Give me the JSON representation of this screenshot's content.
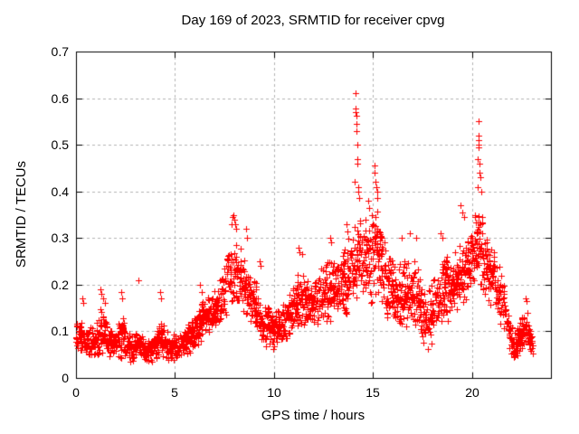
{
  "chart_data": {
    "type": "scatter",
    "title": "Day 169 of 2023, SRMTID for receiver cpvg",
    "xlabel": "GPS time / hours",
    "ylabel": "SRMTID / TECUs",
    "xlim": [
      0,
      24
    ],
    "ylim": [
      0,
      0.7
    ],
    "xticks": [
      0,
      5,
      10,
      15,
      20
    ],
    "xtick_labels": [
      "0",
      "5",
      "10",
      "15",
      "20"
    ],
    "yticks": [
      0,
      0.1,
      0.2,
      0.3,
      0.4,
      0.5,
      0.6,
      0.7
    ],
    "ytick_labels": [
      "0",
      "0.1",
      "0.2",
      "0.3",
      "0.4",
      "0.5",
      "0.6",
      "0.7"
    ],
    "grid": true,
    "legend": "none",
    "marker": "plus",
    "marker_size": 7,
    "colors": {
      "marker": "#ff0000",
      "grid": "#b4b4b4",
      "border": "#000000",
      "text": "#000000",
      "background": "#ffffff"
    },
    "envelope_points": [
      [
        0.0,
        0.05,
        0.13
      ],
      [
        0.4,
        0.05,
        0.12
      ],
      [
        0.8,
        0.04,
        0.11
      ],
      [
        1.3,
        0.05,
        0.15
      ],
      [
        1.7,
        0.04,
        0.1
      ],
      [
        2.3,
        0.04,
        0.14
      ],
      [
        2.8,
        0.03,
        0.09
      ],
      [
        3.2,
        0.04,
        0.1
      ],
      [
        3.7,
        0.03,
        0.08
      ],
      [
        4.3,
        0.04,
        0.13
      ],
      [
        4.8,
        0.03,
        0.09
      ],
      [
        5.3,
        0.04,
        0.1
      ],
      [
        5.8,
        0.05,
        0.12
      ],
      [
        6.3,
        0.07,
        0.16
      ],
      [
        6.8,
        0.08,
        0.18
      ],
      [
        7.3,
        0.1,
        0.22
      ],
      [
        7.7,
        0.13,
        0.28
      ],
      [
        8.1,
        0.14,
        0.3
      ],
      [
        8.5,
        0.12,
        0.26
      ],
      [
        9.0,
        0.1,
        0.22
      ],
      [
        9.5,
        0.07,
        0.16
      ],
      [
        10.0,
        0.05,
        0.14
      ],
      [
        10.5,
        0.07,
        0.16
      ],
      [
        11.0,
        0.09,
        0.2
      ],
      [
        11.4,
        0.1,
        0.24
      ],
      [
        11.9,
        0.1,
        0.22
      ],
      [
        12.4,
        0.11,
        0.24
      ],
      [
        12.9,
        0.12,
        0.26
      ],
      [
        13.3,
        0.12,
        0.26
      ],
      [
        13.7,
        0.13,
        0.29
      ],
      [
        14.1,
        0.15,
        0.36
      ],
      [
        14.5,
        0.15,
        0.33
      ],
      [
        14.9,
        0.16,
        0.36
      ],
      [
        15.2,
        0.16,
        0.36
      ],
      [
        15.6,
        0.13,
        0.3
      ],
      [
        16.0,
        0.1,
        0.26
      ],
      [
        16.5,
        0.1,
        0.26
      ],
      [
        16.9,
        0.1,
        0.27
      ],
      [
        17.3,
        0.09,
        0.24
      ],
      [
        17.7,
        0.04,
        0.19
      ],
      [
        18.1,
        0.07,
        0.22
      ],
      [
        18.5,
        0.12,
        0.28
      ],
      [
        18.9,
        0.12,
        0.26
      ],
      [
        19.3,
        0.13,
        0.28
      ],
      [
        19.7,
        0.16,
        0.31
      ],
      [
        20.1,
        0.18,
        0.34
      ],
      [
        20.35,
        0.2,
        0.38
      ],
      [
        20.7,
        0.16,
        0.32
      ],
      [
        21.1,
        0.13,
        0.28
      ],
      [
        21.5,
        0.1,
        0.23
      ],
      [
        21.9,
        0.06,
        0.14
      ],
      [
        22.2,
        0.03,
        0.1
      ],
      [
        22.5,
        0.05,
        0.13
      ],
      [
        22.75,
        0.06,
        0.16
      ],
      [
        23.0,
        0.04,
        0.11
      ],
      [
        23.1,
        0.04,
        0.1
      ]
    ],
    "spike_points": [
      [
        0.3,
        0.17
      ],
      [
        0.35,
        0.16
      ],
      [
        1.25,
        0.19
      ],
      [
        1.3,
        0.18
      ],
      [
        1.35,
        0.17
      ],
      [
        1.45,
        0.16
      ],
      [
        2.3,
        0.185
      ],
      [
        2.35,
        0.17
      ],
      [
        3.15,
        0.21
      ],
      [
        4.25,
        0.185
      ],
      [
        4.3,
        0.17
      ],
      [
        6.25,
        0.2
      ],
      [
        6.35,
        0.185
      ],
      [
        7.85,
        0.33
      ],
      [
        7.9,
        0.345
      ],
      [
        7.95,
        0.35
      ],
      [
        8.0,
        0.34
      ],
      [
        8.05,
        0.33
      ],
      [
        8.1,
        0.32
      ],
      [
        8.6,
        0.32
      ],
      [
        8.63,
        0.3
      ],
      [
        9.3,
        0.25
      ],
      [
        9.33,
        0.24
      ],
      [
        11.25,
        0.28
      ],
      [
        11.3,
        0.27
      ],
      [
        11.45,
        0.265
      ],
      [
        12.85,
        0.3
      ],
      [
        12.9,
        0.29
      ],
      [
        13.65,
        0.33
      ],
      [
        13.7,
        0.315
      ],
      [
        14.1,
        0.42
      ],
      [
        14.12,
        0.61
      ],
      [
        14.13,
        0.578
      ],
      [
        14.14,
        0.57
      ],
      [
        14.15,
        0.562
      ],
      [
        14.16,
        0.545
      ],
      [
        14.18,
        0.53
      ],
      [
        14.2,
        0.5
      ],
      [
        14.21,
        0.47
      ],
      [
        14.22,
        0.46
      ],
      [
        14.25,
        0.41
      ],
      [
        14.28,
        0.4
      ],
      [
        14.3,
        0.385
      ],
      [
        14.75,
        0.38
      ],
      [
        14.8,
        0.365
      ],
      [
        15.08,
        0.455
      ],
      [
        15.1,
        0.44
      ],
      [
        15.13,
        0.42
      ],
      [
        15.16,
        0.41
      ],
      [
        15.2,
        0.4
      ],
      [
        15.24,
        0.385
      ],
      [
        16.45,
        0.3
      ],
      [
        16.85,
        0.31
      ],
      [
        17.2,
        0.3
      ],
      [
        18.42,
        0.31
      ],
      [
        18.5,
        0.3
      ],
      [
        19.45,
        0.37
      ],
      [
        19.5,
        0.355
      ],
      [
        19.6,
        0.345
      ],
      [
        20.28,
        0.41
      ],
      [
        20.3,
        0.47
      ],
      [
        20.32,
        0.55
      ],
      [
        20.33,
        0.52
      ],
      [
        20.34,
        0.51
      ],
      [
        20.35,
        0.5
      ],
      [
        20.36,
        0.495
      ],
      [
        20.38,
        0.46
      ],
      [
        20.4,
        0.44
      ],
      [
        20.44,
        0.43
      ],
      [
        20.48,
        0.4
      ],
      [
        21.5,
        0.22
      ],
      [
        22.7,
        0.17
      ],
      [
        22.75,
        0.165
      ]
    ],
    "sampling": {
      "t_start": 0,
      "t_end": 23.1,
      "dt": 0.016,
      "seed": 169
    }
  }
}
